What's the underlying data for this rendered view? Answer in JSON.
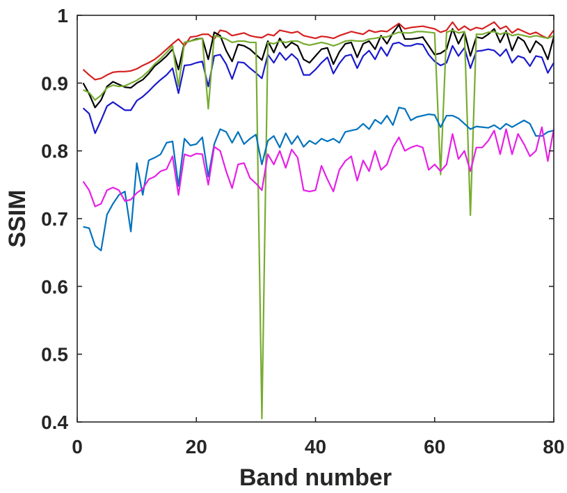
{
  "chart_data": {
    "type": "line",
    "title": "",
    "xlabel": "Band number",
    "ylabel": "SSIM",
    "xlim": [
      0,
      80
    ],
    "ylim": [
      0.4,
      1.0
    ],
    "grid": false,
    "x_ticks": [
      "0",
      "20",
      "40",
      "60",
      "80"
    ],
    "y_ticks": [
      "0.4",
      "0.5",
      "0.6",
      "0.7",
      "0.8",
      "0.9",
      "1"
    ],
    "x_tick_values": [
      0,
      20,
      40,
      60,
      80
    ],
    "y_tick_values": [
      0.4,
      0.5,
      0.6,
      0.7,
      0.8,
      0.9,
      1.0
    ],
    "x": [
      1,
      2,
      3,
      4,
      5,
      6,
      7,
      8,
      9,
      10,
      11,
      12,
      13,
      14,
      15,
      16,
      17,
      18,
      19,
      20,
      21,
      22,
      23,
      24,
      25,
      26,
      27,
      28,
      29,
      30,
      31,
      32,
      33,
      34,
      35,
      36,
      37,
      38,
      39,
      40,
      41,
      42,
      43,
      44,
      45,
      46,
      47,
      48,
      49,
      50,
      51,
      52,
      53,
      54,
      55,
      56,
      57,
      58,
      59,
      60,
      61,
      62,
      63,
      64,
      65,
      66,
      67,
      68,
      69,
      70,
      71,
      72,
      73,
      74,
      75,
      76,
      77,
      78,
      79,
      80
    ],
    "series": [
      {
        "color": "#d62020",
        "values": [
          0.92,
          0.912,
          0.905,
          0.907,
          0.912,
          0.916,
          0.917,
          0.917,
          0.918,
          0.921,
          0.926,
          0.93,
          0.935,
          0.942,
          0.95,
          0.958,
          0.965,
          0.955,
          0.968,
          0.969,
          0.972,
          0.972,
          0.965,
          0.978,
          0.976,
          0.97,
          0.972,
          0.974,
          0.97,
          0.968,
          0.967,
          0.972,
          0.97,
          0.978,
          0.976,
          0.974,
          0.976,
          0.97,
          0.968,
          0.966,
          0.969,
          0.968,
          0.966,
          0.97,
          0.973,
          0.976,
          0.974,
          0.972,
          0.978,
          0.975,
          0.977,
          0.976,
          0.982,
          0.988,
          0.98,
          0.982,
          0.983,
          0.984,
          0.982,
          0.98,
          0.975,
          0.978,
          0.99,
          0.978,
          0.984,
          0.978,
          0.982,
          0.98,
          0.985,
          0.99,
          0.98,
          0.984,
          0.974,
          0.98,
          0.976,
          0.972,
          0.975,
          0.97,
          0.966,
          0.978
        ]
      },
      {
        "color": "#000000",
        "values": [
          0.9,
          0.884,
          0.864,
          0.875,
          0.895,
          0.902,
          0.898,
          0.894,
          0.893,
          0.9,
          0.905,
          0.914,
          0.925,
          0.932,
          0.94,
          0.95,
          0.92,
          0.96,
          0.962,
          0.965,
          0.966,
          0.935,
          0.975,
          0.97,
          0.948,
          0.932,
          0.957,
          0.955,
          0.95,
          0.942,
          0.934,
          0.962,
          0.945,
          0.966,
          0.952,
          0.96,
          0.955,
          0.935,
          0.93,
          0.94,
          0.95,
          0.952,
          0.928,
          0.946,
          0.958,
          0.96,
          0.938,
          0.958,
          0.962,
          0.95,
          0.97,
          0.958,
          0.974,
          0.986,
          0.965,
          0.965,
          0.966,
          0.968,
          0.955,
          0.942,
          0.944,
          0.95,
          0.98,
          0.958,
          0.975,
          0.94,
          0.968,
          0.966,
          0.972,
          0.98,
          0.96,
          0.977,
          0.948,
          0.968,
          0.962,
          0.945,
          0.962,
          0.955,
          0.935,
          0.968
        ]
      },
      {
        "color": "#1a1acc",
        "values": [
          0.863,
          0.855,
          0.826,
          0.845,
          0.866,
          0.872,
          0.866,
          0.86,
          0.86,
          0.874,
          0.88,
          0.888,
          0.897,
          0.905,
          0.912,
          0.922,
          0.885,
          0.926,
          0.927,
          0.93,
          0.932,
          0.895,
          0.94,
          0.942,
          0.928,
          0.906,
          0.931,
          0.93,
          0.922,
          0.915,
          0.907,
          0.942,
          0.93,
          0.945,
          0.934,
          0.943,
          0.935,
          0.912,
          0.912,
          0.92,
          0.93,
          0.938,
          0.914,
          0.929,
          0.94,
          0.942,
          0.922,
          0.94,
          0.948,
          0.935,
          0.953,
          0.94,
          0.958,
          0.96,
          0.955,
          0.955,
          0.958,
          0.957,
          0.942,
          0.932,
          0.926,
          0.93,
          0.955,
          0.94,
          0.952,
          0.922,
          0.947,
          0.948,
          0.95,
          0.948,
          0.94,
          0.95,
          0.93,
          0.94,
          0.937,
          0.925,
          0.94,
          0.938,
          0.915,
          0.93
        ]
      },
      {
        "color": "#77ac30",
        "values": [
          0.89,
          0.886,
          0.875,
          0.882,
          0.893,
          0.897,
          0.895,
          0.896,
          0.9,
          0.904,
          0.91,
          0.918,
          0.928,
          0.936,
          0.945,
          0.955,
          0.895,
          0.96,
          0.962,
          0.964,
          0.966,
          0.862,
          0.97,
          0.968,
          0.965,
          0.96,
          0.962,
          0.962,
          0.96,
          0.96,
          0.405,
          0.96,
          0.958,
          0.962,
          0.96,
          0.962,
          0.962,
          0.958,
          0.956,
          0.958,
          0.96,
          0.958,
          0.955,
          0.958,
          0.962,
          0.963,
          0.962,
          0.962,
          0.965,
          0.966,
          0.968,
          0.968,
          0.972,
          0.975,
          0.974,
          0.974,
          0.976,
          0.976,
          0.975,
          0.974,
          0.765,
          0.975,
          0.978,
          0.974,
          0.976,
          0.705,
          0.972,
          0.972,
          0.975,
          0.976,
          0.972,
          0.975,
          0.97,
          0.972,
          0.97,
          0.968,
          0.97,
          0.968,
          0.966,
          0.97
        ]
      },
      {
        "color": "#0072bd",
        "values": [
          0.688,
          0.686,
          0.66,
          0.653,
          0.706,
          0.722,
          0.735,
          0.74,
          0.681,
          0.782,
          0.735,
          0.786,
          0.79,
          0.795,
          0.812,
          0.814,
          0.748,
          0.818,
          0.808,
          0.81,
          0.82,
          0.762,
          0.81,
          0.832,
          0.828,
          0.812,
          0.828,
          0.81,
          0.818,
          0.824,
          0.78,
          0.815,
          0.822,
          0.805,
          0.826,
          0.81,
          0.822,
          0.806,
          0.815,
          0.81,
          0.818,
          0.814,
          0.818,
          0.812,
          0.828,
          0.83,
          0.832,
          0.84,
          0.832,
          0.846,
          0.84,
          0.852,
          0.838,
          0.864,
          0.862,
          0.845,
          0.85,
          0.852,
          0.854,
          0.853,
          0.835,
          0.852,
          0.852,
          0.848,
          0.84,
          0.832,
          0.836,
          0.835,
          0.834,
          0.838,
          0.832,
          0.84,
          0.835,
          0.84,
          0.845,
          0.84,
          0.822,
          0.822,
          0.828,
          0.83
        ]
      },
      {
        "color": "#e620e6",
        "values": [
          0.755,
          0.742,
          0.718,
          0.722,
          0.742,
          0.746,
          0.742,
          0.726,
          0.728,
          0.738,
          0.744,
          0.758,
          0.762,
          0.77,
          0.773,
          0.792,
          0.735,
          0.795,
          0.792,
          0.796,
          0.795,
          0.75,
          0.806,
          0.8,
          0.77,
          0.745,
          0.78,
          0.782,
          0.76,
          0.752,
          0.742,
          0.795,
          0.78,
          0.8,
          0.775,
          0.802,
          0.79,
          0.742,
          0.74,
          0.742,
          0.778,
          0.758,
          0.74,
          0.772,
          0.785,
          0.792,
          0.756,
          0.786,
          0.77,
          0.8,
          0.772,
          0.78,
          0.805,
          0.82,
          0.8,
          0.805,
          0.808,
          0.805,
          0.772,
          0.78,
          0.77,
          0.78,
          0.825,
          0.788,
          0.8,
          0.77,
          0.805,
          0.805,
          0.815,
          0.83,
          0.795,
          0.832,
          0.795,
          0.825,
          0.81,
          0.792,
          0.8,
          0.835,
          0.785,
          0.832
        ]
      }
    ]
  }
}
